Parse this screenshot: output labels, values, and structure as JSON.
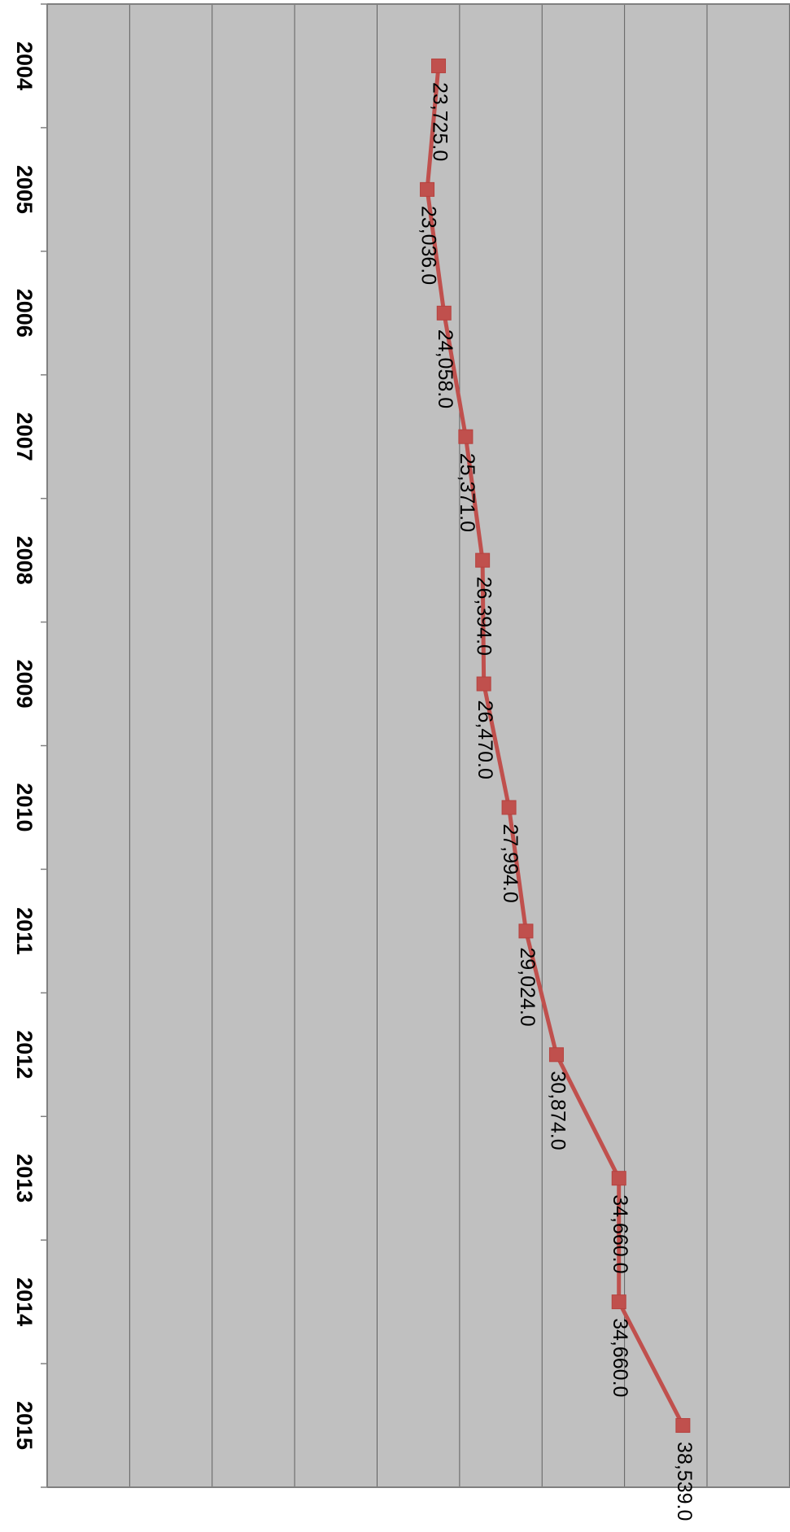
{
  "chart_data": {
    "type": "line",
    "orientation": "rotated-90-clockwise",
    "categories": [
      "2004",
      "2005",
      "2006",
      "2007",
      "2008",
      "2009",
      "2010",
      "2011",
      "2012",
      "2013",
      "2014",
      "2015"
    ],
    "series": [
      {
        "values": [
          23725,
          23036,
          24058,
          25371,
          26394,
          26470,
          27994,
          29024,
          30874,
          34660,
          34660,
          38539
        ],
        "value_labels": [
          "23,725.0",
          "23,036.0",
          "24,058.0",
          "25,371.0",
          "26,394.0",
          "26,470.0",
          "27,994.0",
          "29,024.0",
          "30,874.0",
          "34,660.0",
          "34,660.0",
          "38,539.0"
        ],
        "color": "#C0504D",
        "marker": "square"
      }
    ],
    "ylim": [
      0,
      45000
    ],
    "y_major_unit": 5000,
    "grid": true,
    "legend": "none",
    "title": "",
    "xlabel": "",
    "ylabel": ""
  },
  "colors": {
    "plot_background": "#C0C0C0",
    "gridline": "#606060",
    "axis": "#808080",
    "series": "#C0504D"
  }
}
